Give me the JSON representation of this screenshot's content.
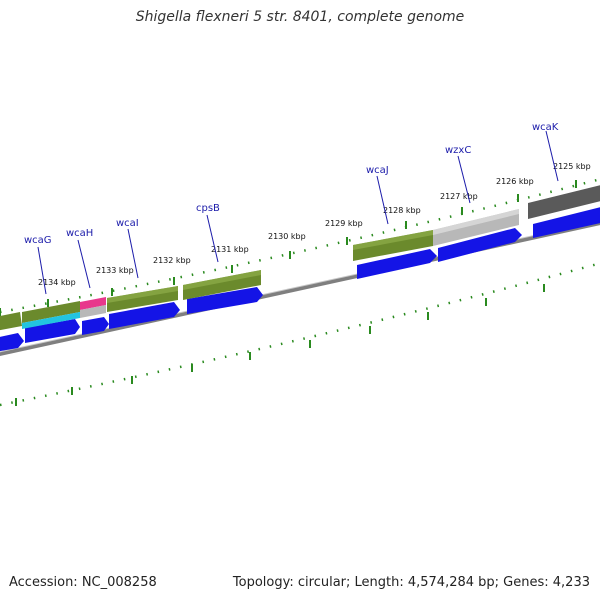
{
  "title": "Shigella flexneri 5 str. 8401, complete genome",
  "footer": {
    "accession": "Accession: NC_008258",
    "topology": "Topology: circular; Length: 4,574,284 bp; Genes: 4,233"
  },
  "kbp_labels": [
    "2125 kbp",
    "2126 kbp",
    "2127 kbp",
    "2128 kbp",
    "2129 kbp",
    "2130 kbp",
    "2131 kbp",
    "2132 kbp",
    "2133 kbp",
    "2134 kbp"
  ],
  "gene_labels": [
    "wcaG",
    "wcaH",
    "wcaI",
    "cpsB",
    "wcaJ",
    "wzxC",
    "wcaK"
  ],
  "colors": {
    "tick": "#2a8a1f",
    "backbone": "#7f7f7f",
    "cds": "#1414e6",
    "olive": "#6b8a2c",
    "grey": "#b8b8b8",
    "dark_grey": "#5a5a5a",
    "pink": "#e8388c",
    "cyan": "#22c4e0",
    "label": "#1c1caa"
  }
}
